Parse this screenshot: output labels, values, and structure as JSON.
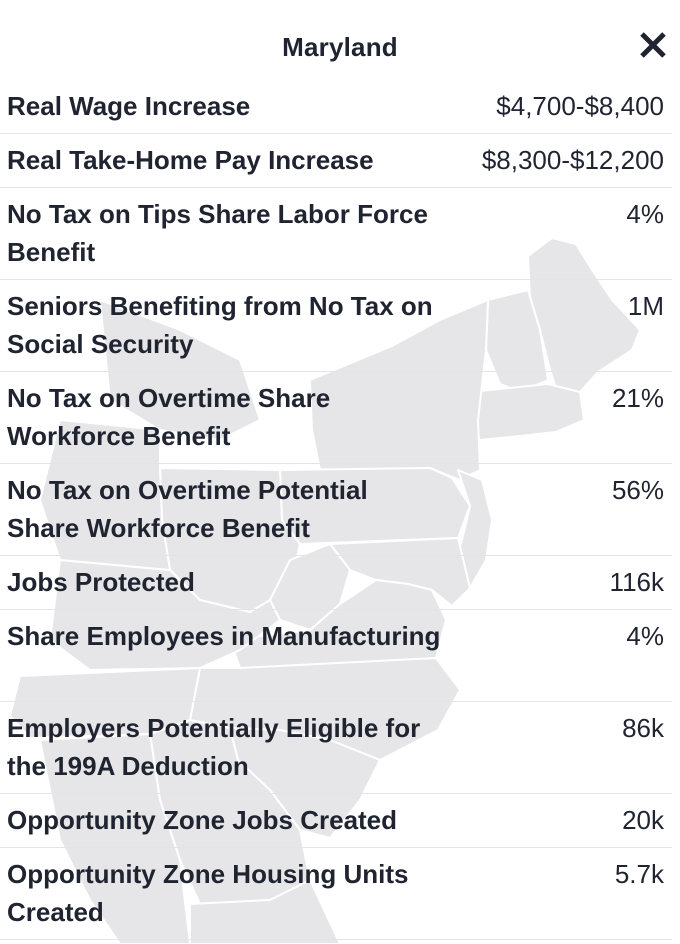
{
  "panel": {
    "title": "Maryland",
    "close_icon": "close-icon"
  },
  "rows": [
    {
      "label": "Real Wage Increase",
      "value": "$4,700-$8,400"
    },
    {
      "label": "Real Take-Home Pay Increase",
      "value": "$8,300-$12,200"
    },
    {
      "label": "No Tax on Tips Share Labor Force Benefit",
      "value": "4%"
    },
    {
      "label": "Seniors Benefiting from No Tax on Social Security",
      "value": "1M"
    },
    {
      "label": "No Tax on Overtime Share Workforce Benefit",
      "value": "21%"
    },
    {
      "label": "No Tax on Overtime Potential Share Workforce Benefit",
      "value": "56%"
    },
    {
      "label": "Jobs Protected",
      "value": "116k"
    },
    {
      "label": "Share Employees in Manufacturing",
      "value": "4%"
    },
    {
      "label": "Employers Potentially Eligible for the 199A Deduction",
      "value": "86k"
    },
    {
      "label": "Opportunity Zone Jobs Created",
      "value": "20k"
    },
    {
      "label": "Opportunity Zone Housing Units Created",
      "value": "5.7k"
    }
  ],
  "colors": {
    "text": "#1f2430",
    "divider": "#e3e4e7",
    "map_fill": "#e6e6e8",
    "map_border": "#ffffff"
  }
}
